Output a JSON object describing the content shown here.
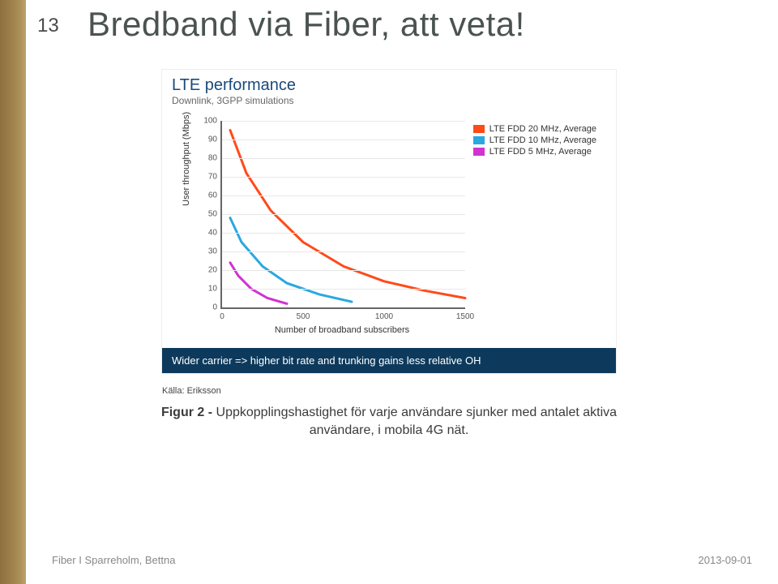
{
  "slide_number": "13",
  "title": "Bredband via Fiber, att veta!",
  "figure": {
    "header_title": "LTE performance",
    "header_sub": "Downlink, 3GPP simulations",
    "banner": "Wider carrier => higher bit rate and trunking gains less relative OH",
    "ylabel": "User throughput (Mbps)",
    "xlabel": "Number of broadband subscribers",
    "background_color": "#ffffff",
    "grid_color": "#e8e8e8",
    "axis_color": "#666666",
    "banner_bg": "#0d3a5c",
    "banner_fg": "#ffffff",
    "xlim": [
      0,
      1500
    ],
    "x_ticks": [
      0,
      500,
      1000,
      1500
    ],
    "ylim": [
      0,
      100
    ],
    "y_ticks": [
      0,
      10,
      20,
      30,
      40,
      50,
      60,
      70,
      80,
      90,
      100
    ],
    "legend": [
      {
        "label": "LTE FDD 20 MHz, Average",
        "color": "#ff4a1a"
      },
      {
        "label": "LTE FDD 10 MHz, Average",
        "color": "#2aa8e0"
      },
      {
        "label": "LTE FDD 5 MHz, Average",
        "color": "#d033d0"
      }
    ],
    "series": [
      {
        "name": "20MHz",
        "color": "#ff4a1a",
        "width": 3,
        "points": [
          [
            50,
            95
          ],
          [
            150,
            72
          ],
          [
            300,
            52
          ],
          [
            500,
            35
          ],
          [
            750,
            22
          ],
          [
            1000,
            14
          ],
          [
            1250,
            9
          ],
          [
            1500,
            5
          ]
        ]
      },
      {
        "name": "10MHz",
        "color": "#2aa8e0",
        "width": 3,
        "points": [
          [
            50,
            48
          ],
          [
            120,
            35
          ],
          [
            250,
            22
          ],
          [
            400,
            13
          ],
          [
            600,
            7
          ],
          [
            800,
            3
          ]
        ]
      },
      {
        "name": "5MHz",
        "color": "#d033d0",
        "width": 3,
        "points": [
          [
            50,
            24
          ],
          [
            100,
            17
          ],
          [
            180,
            10
          ],
          [
            280,
            5
          ],
          [
            400,
            2
          ]
        ]
      }
    ]
  },
  "source": "Källa: Eriksson",
  "caption_bold": "Figur 2 - ",
  "caption_rest": "Uppkopplingshastighet för varje användare sjunker med antalet aktiva användare, i mobila 4G nät.",
  "footer_left": "Fiber I Sparreholm, Bettna",
  "footer_right": "2013-09-01"
}
